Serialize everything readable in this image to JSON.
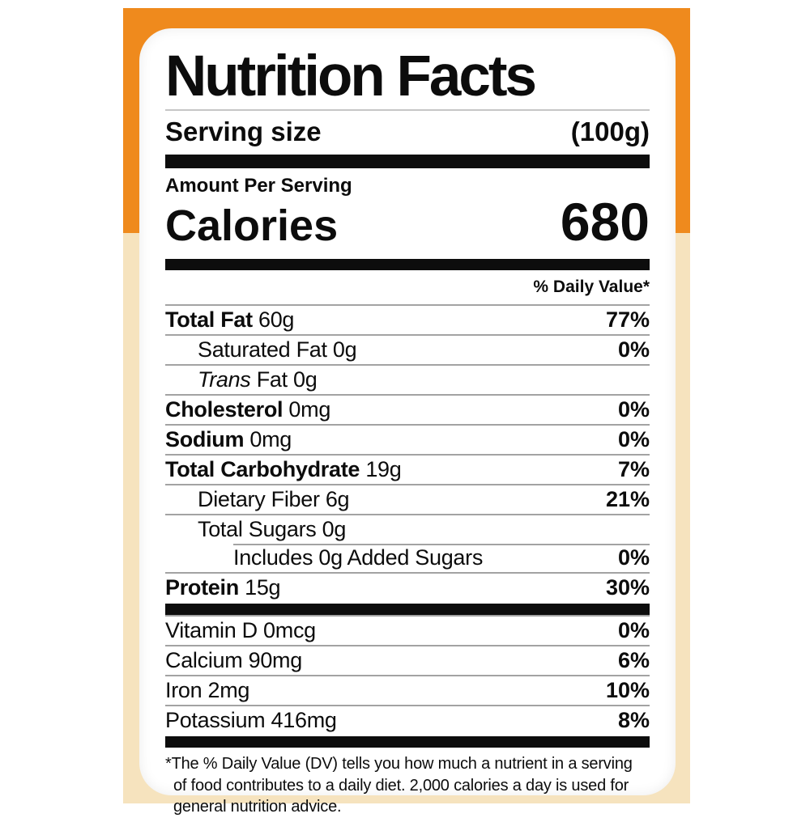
{
  "colors": {
    "orange": "#EF8A1D",
    "cream": "#F6E3BE",
    "bar": "#0d0d0d",
    "divider": "#a3a3a3"
  },
  "label": {
    "title": "Nutrition Facts",
    "serving_size_label": "Serving size",
    "serving_size_value": "(100g)",
    "amount_per_serving": "Amount Per Serving",
    "calories_label": "Calories",
    "calories_value": "680",
    "daily_value_header": "% Daily Value*",
    "nutrient_rows": [
      {
        "name": "Total Fat",
        "amount": "60g",
        "dv": "77%",
        "indent": 0,
        "bold": true
      },
      {
        "name": "Saturated Fat",
        "amount": "0g",
        "dv": "0%",
        "indent": 1
      },
      {
        "name": "Trans",
        "amount": "Fat 0g",
        "dv": "",
        "indent": 1,
        "italic": true
      },
      {
        "name": "Cholesterol",
        "amount": "0mg",
        "dv": "0%",
        "indent": 0,
        "bold": true
      },
      {
        "name": "Sodium",
        "amount": "0mg",
        "dv": "0%",
        "indent": 0,
        "bold": true
      },
      {
        "name": "Total Carbohydrate",
        "amount": "19g",
        "dv": "7%",
        "indent": 0,
        "bold": true
      },
      {
        "name": "Dietary Fiber",
        "amount": "6g",
        "dv": "21%",
        "indent": 1
      },
      {
        "name": "Total Sugars",
        "amount": "0g",
        "dv": "",
        "indent": 1
      },
      {
        "name": "Includes 0g Added Sugars",
        "amount": "",
        "dv": "0%",
        "indent": 2,
        "inset": true
      },
      {
        "name": "Protein",
        "amount": "15g",
        "dv": "30%",
        "indent": 0,
        "bold": true
      }
    ],
    "micronutrient_rows": [
      {
        "name": "Vitamin D",
        "amount": "0mcg",
        "dv": "0%"
      },
      {
        "name": "Calcium",
        "amount": "90mg",
        "dv": "6%"
      },
      {
        "name": "Iron",
        "amount": "2mg",
        "dv": "10%"
      },
      {
        "name": "Potassium",
        "amount": "416mg",
        "dv": "8%"
      }
    ],
    "footnote": "*The % Daily Value (DV) tells you how much a nutrient in a serving of food contributes to a daily diet. 2,000 calories a day is used for general nutrition advice."
  }
}
